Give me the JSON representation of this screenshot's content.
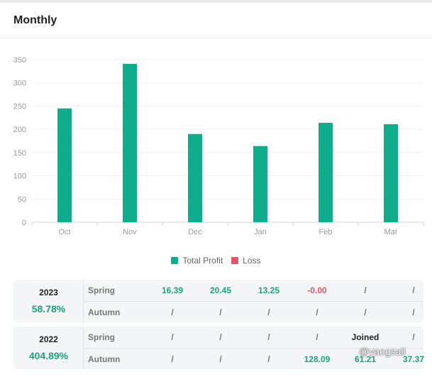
{
  "header": {
    "title": "Monthly"
  },
  "chart_data": {
    "type": "bar",
    "categories": [
      "Oct",
      "Nov",
      "Dec",
      "Jan",
      "Feb",
      "Mar"
    ],
    "series": [
      {
        "name": "Total Profit",
        "values": [
          245,
          341,
          190,
          164,
          214,
          211
        ],
        "color": "#0fad8c"
      },
      {
        "name": "Loss",
        "values": [
          0,
          0,
          0,
          0,
          0,
          0
        ],
        "color": "#e0556a"
      }
    ],
    "yticks": [
      0,
      50,
      100,
      150,
      200,
      250,
      300,
      350
    ],
    "ylim": [
      0,
      350
    ],
    "grid": true,
    "legend": "bottom-center"
  },
  "table": [
    {
      "year": "2023",
      "percent": "58.78%",
      "rows": [
        {
          "season": "Spring",
          "cells": [
            {
              "text": "16.39",
              "kind": "pos"
            },
            {
              "text": "20.45",
              "kind": "pos"
            },
            {
              "text": "13.25",
              "kind": "pos"
            },
            {
              "text": "-0.00",
              "kind": "neg"
            },
            {
              "text": "/",
              "kind": "na"
            },
            {
              "text": "/",
              "kind": "na"
            }
          ]
        },
        {
          "season": "Autumn",
          "cells": [
            {
              "text": "/",
              "kind": "na"
            },
            {
              "text": "/",
              "kind": "na"
            },
            {
              "text": "/",
              "kind": "na"
            },
            {
              "text": "/",
              "kind": "na"
            },
            {
              "text": "/",
              "kind": "na"
            },
            {
              "text": "/",
              "kind": "na"
            }
          ]
        }
      ]
    },
    {
      "year": "2022",
      "percent": "404.89%",
      "rows": [
        {
          "season": "Spring",
          "cells": [
            {
              "text": "/",
              "kind": "na"
            },
            {
              "text": "/",
              "kind": "na"
            },
            {
              "text": "/",
              "kind": "na"
            },
            {
              "text": "/",
              "kind": "na"
            },
            {
              "text": "Joined",
              "kind": "txt"
            },
            {
              "text": "/",
              "kind": "na"
            }
          ]
        },
        {
          "season": "Autumn",
          "cells": [
            {
              "text": "/",
              "kind": "na"
            },
            {
              "text": "/",
              "kind": "na"
            },
            {
              "text": "/",
              "kind": "na"
            },
            {
              "text": "128.09",
              "kind": "pos"
            },
            {
              "text": "61.21",
              "kind": "pos"
            },
            {
              "text": "37.37",
              "kind": "pos"
            }
          ]
        }
      ]
    }
  ],
  "watermark": "@yaogsail"
}
